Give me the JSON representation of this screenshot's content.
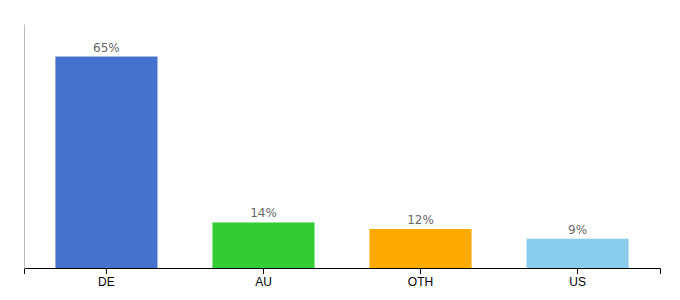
{
  "chart_data": {
    "type": "bar",
    "categories": [
      "DE",
      "AU",
      "OTH",
      "US"
    ],
    "values": [
      65,
      14,
      12,
      9
    ],
    "value_labels": [
      "65%",
      "14%",
      "12%",
      "9%"
    ],
    "colors": [
      "#4472CC",
      "#33CC33",
      "#FFAA00",
      "#88CCEE"
    ],
    "ylim": [
      0,
      75
    ],
    "data_labels": true,
    "tick_labels": "x"
  }
}
